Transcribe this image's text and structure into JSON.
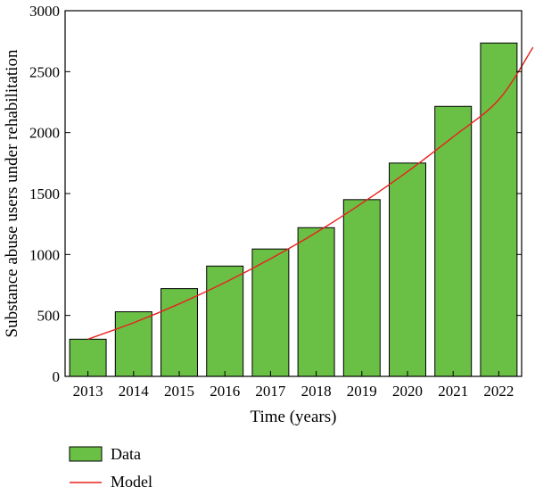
{
  "chart_data": {
    "type": "bar",
    "title": "",
    "xlabel": "Time (years)",
    "ylabel": "Substance abuse users under rehabilitation",
    "categories": [
      "2013",
      "2014",
      "2015",
      "2016",
      "2017",
      "2018",
      "2019",
      "2020",
      "2021",
      "2022"
    ],
    "series": [
      {
        "name": "Data",
        "type": "bar",
        "color": "#6abf45",
        "values": [
          305,
          530,
          720,
          905,
          1045,
          1220,
          1450,
          1750,
          2215,
          2735
        ]
      },
      {
        "name": "Model",
        "type": "line",
        "color": "#e8211d",
        "values": [
          305,
          440,
          595,
          770,
          965,
          1180,
          1420,
          1680,
          1965,
          2270
        ],
        "x_end": 2022.75,
        "value_end": 2700
      }
    ],
    "ylim": [
      0,
      3000
    ],
    "yticks": [
      0,
      500,
      1000,
      1500,
      2000,
      2500,
      3000
    ],
    "grid": false,
    "legend_position": "bottom-left"
  }
}
